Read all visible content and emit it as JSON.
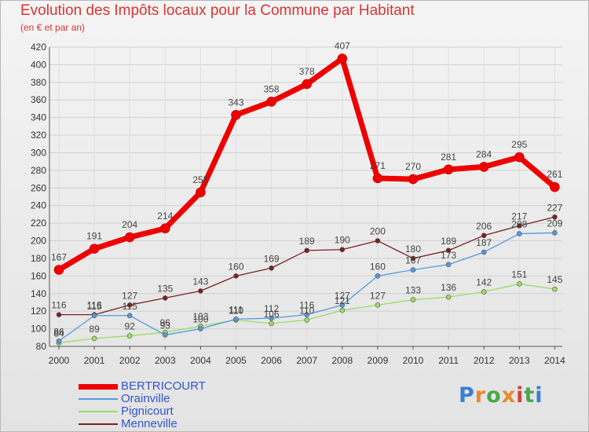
{
  "title": "Evolution des Impôts locaux pour la Commune par Habitant",
  "subtitle": "(en € et par an)",
  "logo": {
    "text": "Proxiti",
    "letter_colors": [
      "#3a7fd0",
      "#e8892a",
      "#49a84a",
      "#e8892a",
      "#d64040",
      "#49a84a",
      "#3a7fd0"
    ]
  },
  "chart_data": {
    "type": "line",
    "title": "Evolution des Impôts locaux pour la Commune par Habitant",
    "subtitle": "(en € et par an)",
    "xlabel": "",
    "ylabel": "",
    "x": [
      2000,
      2001,
      2002,
      2003,
      2004,
      2005,
      2006,
      2007,
      2008,
      2009,
      2010,
      2011,
      2012,
      2013,
      2014
    ],
    "ylim": [
      80,
      420
    ],
    "yticks": [
      80,
      100,
      120,
      140,
      160,
      180,
      200,
      220,
      240,
      260,
      280,
      300,
      320,
      340,
      360,
      380,
      400,
      420
    ],
    "grid": true,
    "legend_position": "bottom-left",
    "series": [
      {
        "name": "BERTRICOURT",
        "color": "#ee0000",
        "values": [
          167,
          191,
          204,
          214,
          255,
          343,
          358,
          378,
          407,
          271,
          270,
          281,
          284,
          295,
          261
        ]
      },
      {
        "name": "Orainville",
        "color": "#5599dd",
        "values": [
          86,
          115,
          115,
          93,
          100,
          111,
          112,
          116,
          127,
          160,
          167,
          173,
          187,
          208,
          209
        ]
      },
      {
        "name": "Pignicourt",
        "color": "#99dd66",
        "values": [
          84,
          89,
          92,
          96,
          103,
          110,
          106,
          110,
          121,
          127,
          133,
          136,
          142,
          151,
          145
        ]
      },
      {
        "name": "Menneville",
        "color": "#772222",
        "values": [
          116,
          116,
          127,
          135,
          143,
          160,
          169,
          189,
          190,
          200,
          180,
          189,
          206,
          217,
          227
        ]
      }
    ]
  }
}
